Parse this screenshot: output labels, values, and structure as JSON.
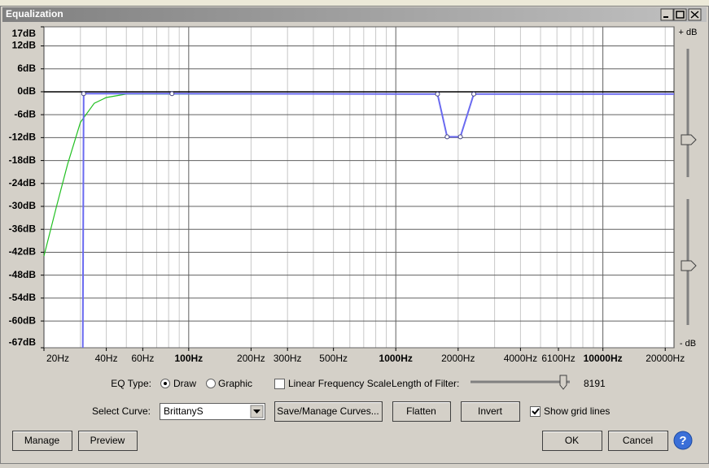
{
  "window": {
    "title": "Equalization"
  },
  "graph": {
    "type": "line",
    "xscale": "log",
    "grid": true,
    "xlim": [
      20,
      22050
    ],
    "ylim": [
      -67,
      17
    ],
    "yticks": [
      {
        "value": 17,
        "label": "17dB"
      },
      {
        "value": 12,
        "label": "12dB"
      },
      {
        "value": 6,
        "label": "6dB"
      },
      {
        "value": 0,
        "label": "0dB"
      },
      {
        "value": -6,
        "label": "-6dB"
      },
      {
        "value": -12,
        "label": "-12dB"
      },
      {
        "value": -18,
        "label": "-18dB"
      },
      {
        "value": -24,
        "label": "-24dB"
      },
      {
        "value": -30,
        "label": "-30dB"
      },
      {
        "value": -36,
        "label": "-36dB"
      },
      {
        "value": -42,
        "label": "-42dB"
      },
      {
        "value": -48,
        "label": "-48dB"
      },
      {
        "value": -54,
        "label": "-54dB"
      },
      {
        "value": -60,
        "label": "-60dB"
      },
      {
        "value": -67,
        "label": "-67dB"
      }
    ],
    "xticks": [
      {
        "value": 20,
        "label": "20Hz"
      },
      {
        "value": 40,
        "label": "40Hz"
      },
      {
        "value": 60,
        "label": "60Hz"
      },
      {
        "value": 100,
        "label": "100Hz"
      },
      {
        "value": 200,
        "label": "200Hz"
      },
      {
        "value": 300,
        "label": "300Hz"
      },
      {
        "value": 500,
        "label": "500Hz"
      },
      {
        "value": 1000,
        "label": "1000Hz"
      },
      {
        "value": 2000,
        "label": "2000Hz"
      },
      {
        "value": 4000,
        "label": "4000Hz"
      },
      {
        "value": 6100,
        "label": "6100Hz"
      },
      {
        "value": 10000,
        "label": "10000Hz"
      },
      {
        "value": 20000,
        "label": "20000Hz"
      }
    ],
    "series": [
      {
        "color": "#22c022",
        "x": [
          20,
          23,
          26,
          30,
          35,
          40,
          50,
          1590,
          1770,
          2050,
          2380,
          22050
        ],
        "values": [
          -43,
          -30,
          -19,
          -8,
          -3,
          -1.5,
          -0.6,
          -0.6,
          -11.8,
          -11.8,
          -0.6,
          -0.6
        ]
      },
      {
        "color": "#6a6af0",
        "x": [
          30.8,
          31.1,
          83,
          1590,
          1770,
          2050,
          2380,
          22050
        ],
        "values": [
          -67,
          -0.5,
          -0.5,
          -0.6,
          -11.8,
          -11.8,
          -0.6,
          -0.6
        ]
      }
    ],
    "gain_top_label": "+ dB",
    "gain_bottom_label": "- dB"
  },
  "controls": {
    "eq_type_label": "EQ Type:",
    "draw_option": "Draw",
    "graphic_option": "Graphic",
    "linear_scale_label": "Linear Frequency Scale",
    "filter_length_label": "Length of Filter:",
    "filter_length": "8191",
    "select_curve_label": "Select Curve:",
    "curve_name": "BrittanyS",
    "save_manage_button": "Save/Manage Curves...",
    "flatten_button": "Flatten",
    "invert_button": "Invert",
    "grid_lines_label": "Show grid lines",
    "manage_button": "Manage",
    "preview_button": "Preview",
    "ok_button": "OK",
    "cancel_button": "Cancel",
    "help_button": "?"
  }
}
